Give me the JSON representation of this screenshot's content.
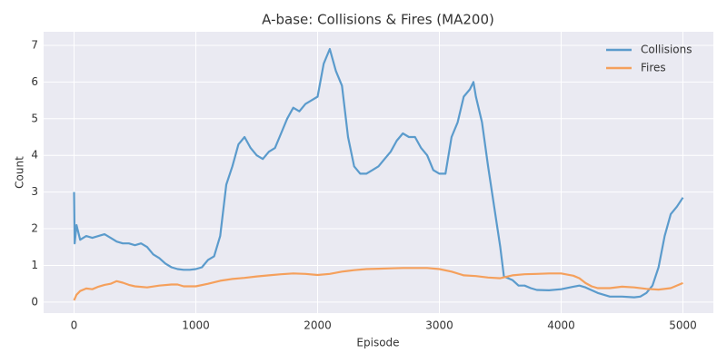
{
  "chart_data": {
    "type": "line",
    "title": "A-base: Collisions & Fires (MA200)",
    "x_label": "Episode",
    "y_label": "Count",
    "xlim": [
      -250,
      5250
    ],
    "ylim": [
      -0.3,
      7.37
    ],
    "xticks": [
      0,
      1000,
      2000,
      3000,
      4000,
      5000
    ],
    "yticks": [
      0,
      1,
      2,
      3,
      4,
      5,
      6,
      7
    ],
    "grid": true,
    "legend": "upper right",
    "series": [
      {
        "name": "Collisions",
        "color": "#5b9bcc",
        "x": [
          0,
          5,
          20,
          50,
          100,
          150,
          200,
          250,
          300,
          350,
          400,
          450,
          500,
          550,
          600,
          650,
          700,
          750,
          800,
          850,
          900,
          950,
          1000,
          1050,
          1100,
          1150,
          1200,
          1250,
          1300,
          1350,
          1400,
          1450,
          1500,
          1550,
          1600,
          1650,
          1700,
          1750,
          1800,
          1850,
          1900,
          1950,
          2000,
          2050,
          2100,
          2150,
          2200,
          2250,
          2300,
          2350,
          2400,
          2450,
          2500,
          2550,
          2600,
          2650,
          2700,
          2750,
          2800,
          2850,
          2900,
          2950,
          3000,
          3050,
          3100,
          3150,
          3200,
          3250,
          3280,
          3300,
          3350,
          3400,
          3450,
          3500,
          3530,
          3600,
          3650,
          3700,
          3750,
          3800,
          3900,
          4000,
          4100,
          4150,
          4200,
          4300,
          4400,
          4500,
          4600,
          4650,
          4700,
          4750,
          4800,
          4850,
          4900,
          4950,
          5000
        ],
        "values": [
          3.0,
          1.6,
          2.1,
          1.7,
          1.8,
          1.75,
          1.8,
          1.85,
          1.75,
          1.65,
          1.6,
          1.6,
          1.55,
          1.6,
          1.5,
          1.3,
          1.2,
          1.05,
          0.95,
          0.9,
          0.88,
          0.88,
          0.9,
          0.95,
          1.15,
          1.25,
          1.8,
          3.2,
          3.7,
          4.3,
          4.5,
          4.2,
          4.0,
          3.9,
          4.1,
          4.2,
          4.6,
          5.0,
          5.3,
          5.2,
          5.4,
          5.5,
          5.6,
          6.5,
          6.9,
          6.3,
          5.9,
          4.5,
          3.7,
          3.5,
          3.5,
          3.6,
          3.7,
          3.9,
          4.1,
          4.4,
          4.6,
          4.5,
          4.5,
          4.2,
          4.0,
          3.6,
          3.5,
          3.5,
          4.5,
          4.9,
          5.6,
          5.8,
          6.0,
          5.6,
          4.9,
          3.7,
          2.6,
          1.5,
          0.7,
          0.6,
          0.45,
          0.45,
          0.38,
          0.33,
          0.32,
          0.35,
          0.42,
          0.45,
          0.4,
          0.25,
          0.15,
          0.15,
          0.13,
          0.15,
          0.25,
          0.45,
          0.95,
          1.8,
          2.4,
          2.6,
          2.85
        ]
      },
      {
        "name": "Fires",
        "color": "#f5a05c",
        "x": [
          0,
          20,
          50,
          100,
          150,
          200,
          250,
          300,
          350,
          400,
          450,
          500,
          600,
          700,
          800,
          850,
          900,
          1000,
          1100,
          1200,
          1300,
          1400,
          1500,
          1600,
          1700,
          1800,
          1900,
          2000,
          2100,
          2200,
          2300,
          2400,
          2500,
          2600,
          2700,
          2800,
          2900,
          3000,
          3100,
          3200,
          3300,
          3400,
          3500,
          3600,
          3700,
          3800,
          3900,
          4000,
          4100,
          4150,
          4200,
          4250,
          4300,
          4400,
          4500,
          4600,
          4700,
          4800,
          4900,
          5000
        ],
        "values": [
          0.05,
          0.2,
          0.3,
          0.37,
          0.35,
          0.42,
          0.47,
          0.5,
          0.57,
          0.53,
          0.47,
          0.43,
          0.4,
          0.45,
          0.48,
          0.48,
          0.43,
          0.43,
          0.5,
          0.58,
          0.63,
          0.66,
          0.7,
          0.73,
          0.76,
          0.78,
          0.77,
          0.74,
          0.77,
          0.83,
          0.87,
          0.9,
          0.91,
          0.92,
          0.93,
          0.93,
          0.93,
          0.9,
          0.83,
          0.73,
          0.71,
          0.67,
          0.65,
          0.73,
          0.76,
          0.77,
          0.78,
          0.78,
          0.72,
          0.65,
          0.52,
          0.43,
          0.38,
          0.38,
          0.42,
          0.4,
          0.36,
          0.34,
          0.38,
          0.52
        ]
      }
    ]
  }
}
